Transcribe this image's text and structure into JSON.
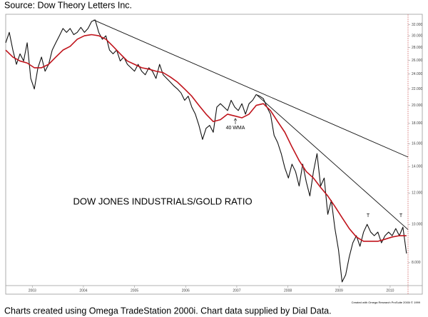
{
  "source": "Source: Dow Theory Letters Inc.",
  "caption": "Charts created using Omega TradeStation 2000i. Chart data supplied by Dial Data.",
  "chart_data": {
    "type": "line",
    "title": "DOW JONES INDUSTRIALS/GOLD RATIO",
    "credit": "Created with Omega Research ProSuite 2000i © 1999",
    "annotations": [
      "40 WMA",
      "T",
      "T"
    ],
    "log_y": true,
    "xlim": [
      2002.48,
      2010.35
    ],
    "xticks": [
      2003,
      2004,
      2005,
      2006,
      2007,
      2008,
      2009,
      2010
    ],
    "ylim": [
      7,
      34
    ],
    "yticks": [
      {
        "value": 8,
        "label": "8.000"
      },
      {
        "value": 10,
        "label": "10.000"
      },
      {
        "value": 12,
        "label": "12.000"
      },
      {
        "value": 14,
        "label": "14.000"
      },
      {
        "value": 16,
        "label": "16.000"
      },
      {
        "value": 18,
        "label": "18.000"
      },
      {
        "value": 20,
        "label": "20.000"
      },
      {
        "value": 22,
        "label": "22.000"
      },
      {
        "value": 24,
        "label": "24.000"
      },
      {
        "value": 26,
        "label": "26.000"
      },
      {
        "value": 28,
        "label": "28.000"
      },
      {
        "value": 30,
        "label": "30.000"
      },
      {
        "value": 32,
        "label": "32.000"
      }
    ],
    "series": [
      {
        "color": "#111111",
        "x": [
          2002.48,
          2002.55,
          2002.62,
          2002.69,
          2002.76,
          2002.83,
          2002.9,
          2002.97,
          2003.04,
          2003.11,
          2003.18,
          2003.25,
          2003.32,
          2003.39,
          2003.46,
          2003.53,
          2003.6,
          2003.67,
          2003.74,
          2003.81,
          2003.88,
          2003.95,
          2004.02,
          2004.09,
          2004.16,
          2004.23,
          2004.3,
          2004.37,
          2004.44,
          2004.51,
          2004.58,
          2004.65,
          2004.72,
          2004.79,
          2004.86,
          2004.93,
          2005.0,
          2005.07,
          2005.14,
          2005.21,
          2005.28,
          2005.35,
          2005.42,
          2005.49,
          2005.56,
          2005.63,
          2005.7,
          2005.77,
          2005.84,
          2005.91,
          2005.98,
          2006.05,
          2006.12,
          2006.19,
          2006.26,
          2006.33,
          2006.4,
          2006.47,
          2006.54,
          2006.61,
          2006.68,
          2006.75,
          2006.82,
          2006.89,
          2006.96,
          2007.03,
          2007.1,
          2007.17,
          2007.24,
          2007.31,
          2007.38,
          2007.45,
          2007.52,
          2007.59,
          2007.66,
          2007.73,
          2007.8,
          2007.87,
          2007.94,
          2008.01,
          2008.08,
          2008.15,
          2008.22,
          2008.29,
          2008.36,
          2008.43,
          2008.5,
          2008.57,
          2008.64,
          2008.71,
          2008.78,
          2008.85,
          2008.92,
          2008.99,
          2009.06,
          2009.13,
          2009.2,
          2009.27,
          2009.34,
          2009.41,
          2009.48,
          2009.55,
          2009.62,
          2009.69,
          2009.76,
          2009.83,
          2009.9,
          2009.97,
          2010.04,
          2010.11,
          2010.18,
          2010.25,
          2010.32
        ],
        "values": [
          28.8,
          30.6,
          27.6,
          25.4,
          27.0,
          25.9,
          28.8,
          23.4,
          22.0,
          24.9,
          26.5,
          24.4,
          25.4,
          27.6,
          28.8,
          30.0,
          31.3,
          30.6,
          31.3,
          30.2,
          30.6,
          31.5,
          30.6,
          31.3,
          32.6,
          32.9,
          30.6,
          29.4,
          30.0,
          27.6,
          27.0,
          27.6,
          25.9,
          26.5,
          25.4,
          24.9,
          24.4,
          25.4,
          24.4,
          23.9,
          24.9,
          24.4,
          23.4,
          25.4,
          23.9,
          23.4,
          22.9,
          22.4,
          22.0,
          21.5,
          20.6,
          21.1,
          19.8,
          19.0,
          17.8,
          16.4,
          17.5,
          17.8,
          17.1,
          19.8,
          20.2,
          19.8,
          19.4,
          20.6,
          19.8,
          19.4,
          20.2,
          19.0,
          20.2,
          20.6,
          21.3,
          21.1,
          20.8,
          19.8,
          19.0,
          16.8,
          16.1,
          15.1,
          13.9,
          13.1,
          14.2,
          13.6,
          12.5,
          14.2,
          12.8,
          11.8,
          13.6,
          15.1,
          12.5,
          13.1,
          10.6,
          11.5,
          9.76,
          8.62,
          7.15,
          7.45,
          8.27,
          8.98,
          9.36,
          8.8,
          9.56,
          10.0,
          9.56,
          9.36,
          9.56,
          8.98,
          9.36,
          9.56,
          9.36,
          9.76,
          9.36,
          9.84,
          8.44
        ]
      },
      {
        "color": "#c0141c",
        "x": [
          2002.48,
          2002.62,
          2002.76,
          2002.9,
          2003.04,
          2003.18,
          2003.32,
          2003.46,
          2003.6,
          2003.74,
          2003.88,
          2004.02,
          2004.16,
          2004.3,
          2004.44,
          2004.58,
          2004.72,
          2004.86,
          2005.0,
          2005.14,
          2005.28,
          2005.42,
          2005.56,
          2005.7,
          2005.84,
          2005.98,
          2006.12,
          2006.26,
          2006.4,
          2006.54,
          2006.68,
          2006.82,
          2006.96,
          2007.1,
          2007.24,
          2007.38,
          2007.52,
          2007.66,
          2007.8,
          2007.94,
          2008.08,
          2008.22,
          2008.36,
          2008.5,
          2008.64,
          2008.78,
          2008.92,
          2009.06,
          2009.2,
          2009.34,
          2009.48,
          2009.62,
          2009.76,
          2009.9,
          2010.04,
          2010.18,
          2010.32
        ],
        "values": [
          27.6,
          26.5,
          25.9,
          25.6,
          24.9,
          24.9,
          25.4,
          26.5,
          27.6,
          28.2,
          29.4,
          30.0,
          30.2,
          30.0,
          29.4,
          28.2,
          27.0,
          25.9,
          25.4,
          24.9,
          24.7,
          24.4,
          24.2,
          23.6,
          22.9,
          22.0,
          21.1,
          20.0,
          19.0,
          18.2,
          18.4,
          19.0,
          18.8,
          18.6,
          19.0,
          20.0,
          20.2,
          19.4,
          18.2,
          17.1,
          15.7,
          14.5,
          13.6,
          13.1,
          12.4,
          11.8,
          11.1,
          10.4,
          9.76,
          9.29,
          9.06,
          9.06,
          9.06,
          9.17,
          9.29,
          9.36,
          9.36
        ]
      }
    ],
    "trendlines": [
      {
        "color": "#111111",
        "x": [
          2004.2,
          2010.35
        ],
        "values": [
          32.9,
          14.8
        ]
      },
      {
        "color": "#111111",
        "x": [
          2007.4,
          2010.35
        ],
        "values": [
          21.2,
          9.7
        ]
      }
    ]
  }
}
